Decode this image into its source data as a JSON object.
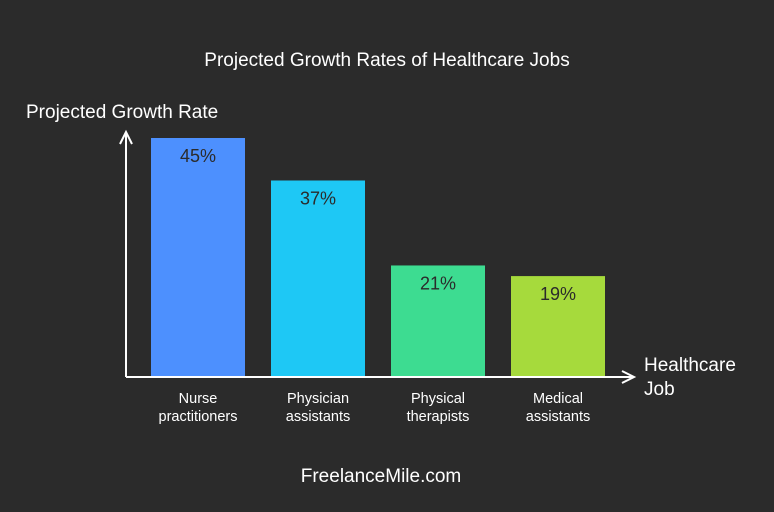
{
  "chart_data": {
    "type": "bar",
    "title": "Projected Growth Rates of Healthcare Jobs",
    "ylabel": "Projected Growth Rate",
    "xlabel": [
      "Healthcare",
      "Job"
    ],
    "categories": [
      [
        "Nurse",
        "practitioners"
      ],
      [
        "Physician",
        "assistants"
      ],
      [
        "Physical",
        "therapists"
      ],
      [
        "Medical",
        "assistants"
      ]
    ],
    "values": [
      45,
      37,
      21,
      19
    ],
    "value_labels": [
      "45%",
      "37%",
      "21%",
      "19%"
    ],
    "colors": [
      "#4d90fe",
      "#1ec8f5",
      "#3ddc91",
      "#a6da3c"
    ],
    "ylim": [
      0,
      45
    ],
    "grid": false
  },
  "footer": "FreelanceMile.com"
}
